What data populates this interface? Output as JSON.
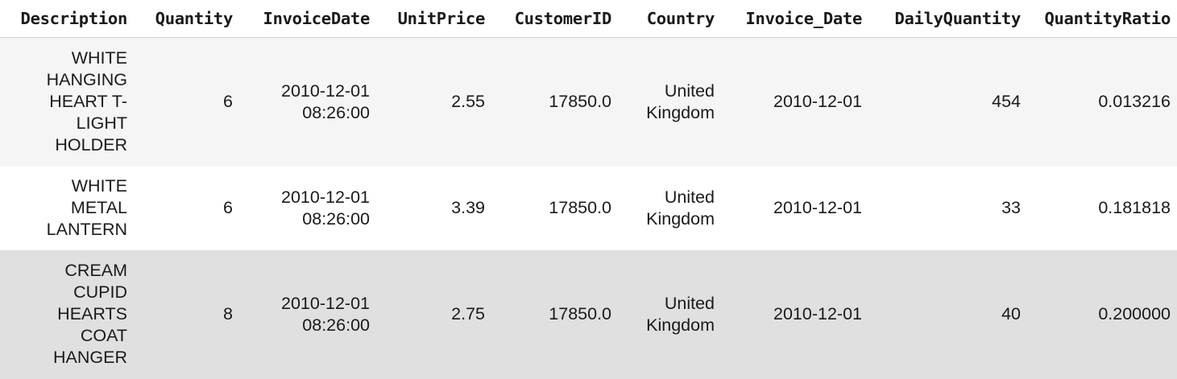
{
  "table": {
    "columns": [
      "Description",
      "Quantity",
      "InvoiceDate",
      "UnitPrice",
      "CustomerID",
      "Country",
      "Invoice_Date",
      "DailyQuantity",
      "QuantityRatio"
    ],
    "rows": [
      {
        "description": "WHITE HANGING HEART T-LIGHT HOLDER",
        "quantity": "6",
        "invoice_date": "2010-12-01 08:26:00",
        "unit_price": "2.55",
        "customer_id": "17850.0",
        "country": "United Kingdom",
        "invoice_date_day": "2010-12-01",
        "daily_quantity": "454",
        "quantity_ratio": "0.013216"
      },
      {
        "description": "WHITE METAL LANTERN",
        "quantity": "6",
        "invoice_date": "2010-12-01 08:26:00",
        "unit_price": "3.39",
        "customer_id": "17850.0",
        "country": "United Kingdom",
        "invoice_date_day": "2010-12-01",
        "daily_quantity": "33",
        "quantity_ratio": "0.181818"
      },
      {
        "description": "CREAM CUPID HEARTS COAT HANGER",
        "quantity": "8",
        "invoice_date": "2010-12-01 08:26:00",
        "unit_price": "2.75",
        "customer_id": "17850.0",
        "country": "United Kingdom",
        "invoice_date_day": "2010-12-01",
        "daily_quantity": "40",
        "quantity_ratio": "0.200000"
      }
    ]
  }
}
